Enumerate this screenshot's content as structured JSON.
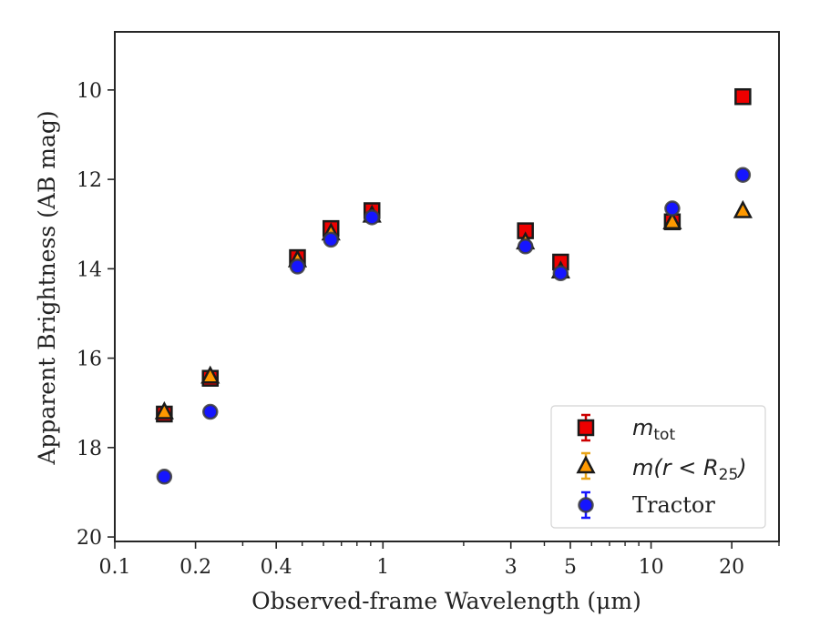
{
  "chart_data": {
    "type": "scatter",
    "xlabel": "Observed-frame Wavelength (μm)",
    "ylabel": "Apparent Brightness (AB mag)",
    "xscale": "log",
    "xlim": [
      0.1,
      30
    ],
    "ylim": [
      20.1,
      8.7
    ],
    "y_inverted": true,
    "grid": false,
    "legend_position": "lower-right",
    "x_ticks": [
      {
        "value": 0.1,
        "label": "0.1"
      },
      {
        "value": 0.2,
        "label": "0.2"
      },
      {
        "value": 0.4,
        "label": "0.4"
      },
      {
        "value": 1,
        "label": "1"
      },
      {
        "value": 3,
        "label": "3"
      },
      {
        "value": 5,
        "label": "5"
      },
      {
        "value": 10,
        "label": "10"
      },
      {
        "value": 20,
        "label": "20"
      }
    ],
    "y_ticks": [
      {
        "value": 10,
        "label": "10"
      },
      {
        "value": 12,
        "label": "12"
      },
      {
        "value": 14,
        "label": "14"
      },
      {
        "value": 16,
        "label": "16"
      },
      {
        "value": 18,
        "label": "18"
      },
      {
        "value": 20,
        "label": "20"
      }
    ],
    "series": [
      {
        "name": "m_tot",
        "marker": "square",
        "color": "#ee0000",
        "error_color": "#cc0000",
        "points": [
          {
            "x": 0.153,
            "y": 17.25
          },
          {
            "x": 0.227,
            "y": 16.45
          },
          {
            "x": 0.48,
            "y": 13.75
          },
          {
            "x": 0.64,
            "y": 13.1
          },
          {
            "x": 0.91,
            "y": 12.7
          },
          {
            "x": 3.4,
            "y": 13.15
          },
          {
            "x": 4.6,
            "y": 13.85
          },
          {
            "x": 12.0,
            "y": 12.95
          },
          {
            "x": 22.0,
            "y": 10.15
          }
        ]
      },
      {
        "name": "m(r < R_25)",
        "marker": "triangle",
        "color": "#ff9900",
        "error_color": "#e8a317",
        "points": [
          {
            "x": 0.153,
            "y": 17.2
          },
          {
            "x": 0.227,
            "y": 16.4
          },
          {
            "x": 0.48,
            "y": 13.8
          },
          {
            "x": 0.64,
            "y": 13.2
          },
          {
            "x": 0.91,
            "y": 12.8
          },
          {
            "x": 3.4,
            "y": 13.4
          },
          {
            "x": 4.6,
            "y": 14.05
          },
          {
            "x": 12.0,
            "y": 12.95
          },
          {
            "x": 22.0,
            "y": 12.7
          }
        ]
      },
      {
        "name": "Tractor",
        "marker": "circle",
        "color": "#1515ff",
        "error_color": "#1515ff",
        "points": [
          {
            "x": 0.153,
            "y": 18.65
          },
          {
            "x": 0.227,
            "y": 17.2
          },
          {
            "x": 0.48,
            "y": 13.95
          },
          {
            "x": 0.64,
            "y": 13.35
          },
          {
            "x": 0.91,
            "y": 12.85
          },
          {
            "x": 3.4,
            "y": 13.5
          },
          {
            "x": 4.6,
            "y": 14.1
          },
          {
            "x": 12.0,
            "y": 12.65
          },
          {
            "x": 22.0,
            "y": 11.9
          }
        ]
      }
    ]
  }
}
